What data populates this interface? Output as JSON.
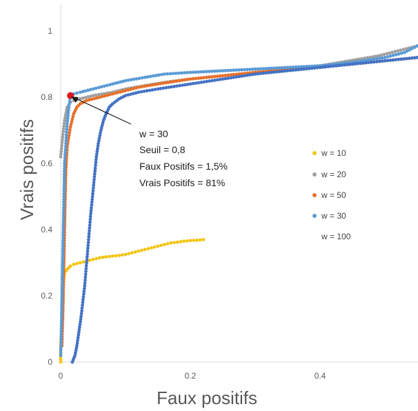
{
  "chart_data": {
    "type": "scatter",
    "xlabel": "Faux positifs",
    "ylabel": "Vrais positifs",
    "xlim": [
      0,
      0.55
    ],
    "ylim": [
      0,
      1.1
    ],
    "x_ticks": [
      "0",
      "0.2",
      "0.4"
    ],
    "y_ticks": [
      "0",
      "0.2",
      "0.4",
      "0.6",
      "0.8",
      "1"
    ],
    "grid": false,
    "legend_position": "right",
    "series": [
      {
        "name": "w = 10",
        "color": "#f2c40f",
        "points": [
          [
            0,
            0
          ],
          [
            0,
            0.04
          ],
          [
            0.001,
            0.09
          ],
          [
            0.002,
            0.14
          ],
          [
            0.003,
            0.19
          ],
          [
            0.004,
            0.24
          ],
          [
            0.006,
            0.27
          ],
          [
            0.01,
            0.28
          ],
          [
            0.015,
            0.29
          ],
          [
            0.02,
            0.295
          ],
          [
            0.03,
            0.3
          ],
          [
            0.04,
            0.305
          ],
          [
            0.05,
            0.31
          ],
          [
            0.06,
            0.315
          ],
          [
            0.07,
            0.318
          ],
          [
            0.08,
            0.32
          ],
          [
            0.09,
            0.322
          ],
          [
            0.1,
            0.325
          ],
          [
            0.11,
            0.33
          ],
          [
            0.12,
            0.335
          ],
          [
            0.13,
            0.34
          ],
          [
            0.14,
            0.345
          ],
          [
            0.15,
            0.35
          ],
          [
            0.16,
            0.355
          ],
          [
            0.17,
            0.36
          ],
          [
            0.18,
            0.362
          ],
          [
            0.19,
            0.365
          ],
          [
            0.2,
            0.367
          ],
          [
            0.21,
            0.368
          ],
          [
            0.22,
            0.37
          ]
        ]
      },
      {
        "name": "w = 20",
        "color": "#a0a0a0",
        "points": [
          [
            0.0,
            0.62
          ],
          [
            0.003,
            0.68
          ],
          [
            0.006,
            0.73
          ],
          [
            0.01,
            0.77
          ],
          [
            0.015,
            0.785
          ],
          [
            0.02,
            0.79
          ],
          [
            0.03,
            0.795
          ],
          [
            0.05,
            0.805
          ],
          [
            0.08,
            0.815
          ],
          [
            0.1,
            0.825
          ],
          [
            0.13,
            0.835
          ],
          [
            0.16,
            0.845
          ],
          [
            0.2,
            0.855
          ],
          [
            0.25,
            0.865
          ],
          [
            0.3,
            0.875
          ],
          [
            0.35,
            0.885
          ],
          [
            0.4,
            0.895
          ],
          [
            0.43,
            0.905
          ],
          [
            0.46,
            0.915
          ],
          [
            0.49,
            0.925
          ],
          [
            0.52,
            0.94
          ],
          [
            0.55,
            0.955
          ]
        ]
      },
      {
        "name": "w = 50",
        "color": "#e8702a",
        "points": [
          [
            0.002,
            0.05
          ],
          [
            0.003,
            0.12
          ],
          [
            0.004,
            0.2
          ],
          [
            0.005,
            0.3
          ],
          [
            0.006,
            0.4
          ],
          [
            0.007,
            0.5
          ],
          [
            0.008,
            0.58
          ],
          [
            0.01,
            0.65
          ],
          [
            0.015,
            0.71
          ],
          [
            0.02,
            0.75
          ],
          [
            0.025,
            0.77
          ],
          [
            0.03,
            0.78
          ],
          [
            0.04,
            0.79
          ],
          [
            0.06,
            0.8
          ],
          [
            0.08,
            0.81
          ],
          [
            0.1,
            0.82
          ],
          [
            0.12,
            0.83
          ],
          [
            0.15,
            0.84
          ],
          [
            0.2,
            0.855
          ],
          [
            0.25,
            0.865
          ],
          [
            0.3,
            0.875
          ],
          [
            0.35,
            0.885
          ],
          [
            0.4,
            0.895
          ],
          [
            0.45,
            0.9
          ],
          [
            0.5,
            0.91
          ],
          [
            0.55,
            0.92
          ]
        ]
      },
      {
        "name": "w = 30",
        "color": "#5b9bd5",
        "points": [
          [
            0,
            0.02
          ],
          [
            0.001,
            0.1
          ],
          [
            0.002,
            0.2
          ],
          [
            0.003,
            0.3
          ],
          [
            0.004,
            0.4
          ],
          [
            0.005,
            0.5
          ],
          [
            0.006,
            0.6
          ],
          [
            0.008,
            0.66
          ],
          [
            0.01,
            0.72
          ],
          [
            0.012,
            0.76
          ],
          [
            0.015,
            0.805
          ],
          [
            0.02,
            0.81
          ],
          [
            0.03,
            0.815
          ],
          [
            0.05,
            0.825
          ],
          [
            0.08,
            0.84
          ],
          [
            0.1,
            0.85
          ],
          [
            0.13,
            0.86
          ],
          [
            0.16,
            0.87
          ],
          [
            0.2,
            0.875
          ],
          [
            0.25,
            0.88
          ],
          [
            0.3,
            0.885
          ],
          [
            0.35,
            0.89
          ],
          [
            0.4,
            0.895
          ],
          [
            0.45,
            0.905
          ],
          [
            0.5,
            0.92
          ],
          [
            0.53,
            0.935
          ],
          [
            0.55,
            0.955
          ]
        ]
      },
      {
        "name": "w = 100",
        "color": "#4472c4",
        "points": [
          [
            0.018,
            0
          ],
          [
            0.022,
            0.02
          ],
          [
            0.025,
            0.05
          ],
          [
            0.028,
            0.09
          ],
          [
            0.031,
            0.13
          ],
          [
            0.034,
            0.18
          ],
          [
            0.037,
            0.23
          ],
          [
            0.04,
            0.3
          ],
          [
            0.043,
            0.37
          ],
          [
            0.046,
            0.44
          ],
          [
            0.049,
            0.5
          ],
          [
            0.052,
            0.56
          ],
          [
            0.055,
            0.62
          ],
          [
            0.058,
            0.66
          ],
          [
            0.062,
            0.7
          ],
          [
            0.066,
            0.73
          ],
          [
            0.07,
            0.75
          ],
          [
            0.075,
            0.77
          ],
          [
            0.08,
            0.78
          ],
          [
            0.09,
            0.795
          ],
          [
            0.1,
            0.805
          ],
          [
            0.12,
            0.815
          ],
          [
            0.15,
            0.825
          ],
          [
            0.2,
            0.84
          ],
          [
            0.25,
            0.855
          ],
          [
            0.3,
            0.87
          ],
          [
            0.35,
            0.88
          ],
          [
            0.4,
            0.89
          ],
          [
            0.45,
            0.9
          ],
          [
            0.5,
            0.91
          ],
          [
            0.55,
            0.92
          ]
        ]
      }
    ],
    "highlight": {
      "x": 0.015,
      "y": 0.805,
      "color": "#e0191e"
    },
    "annotation": {
      "lines": [
        "w = 30",
        "Seuil = 0,8",
        "Faux Positifs = 1,5%",
        "Vrais Positifs = 81%"
      ]
    }
  }
}
